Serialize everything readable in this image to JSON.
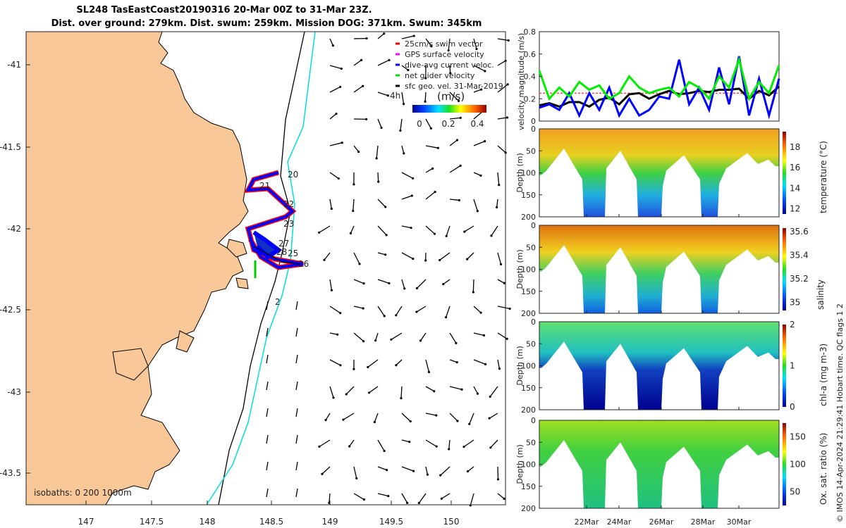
{
  "title": {
    "line1": "SL248 TasEastCoast20190316 20-Mar 00Z to 31-Mar 23Z.",
    "line2": "Dist. over ground: 279km. Dist. swum: 259km. Mission DOG: 371km. Swum: 345km"
  },
  "map": {
    "x_ticks": [
      "147",
      "147.5",
      "148",
      "148.5",
      "149",
      "149.5",
      "150"
    ],
    "y_ticks": [
      "-41",
      "-41.5",
      "-42",
      "-42.5",
      "-43",
      "-43.5"
    ],
    "legend": [
      {
        "label": "25cm/s swim vector",
        "color": "#ff0000"
      },
      {
        "label": "GPS surface velocity",
        "color": "#ff00ff"
      },
      {
        "label": "dive-avg current veloc.",
        "color": "#0000ff"
      },
      {
        "label": "net glider velocity",
        "color": "#00dd00"
      },
      {
        "label": "sfc geo. vel. 31-Mar-2019",
        "color": "#000000"
      }
    ],
    "colorbar_label": "(m/s)",
    "colorbar_ticks": [
      "0",
      "0.2",
      "0.4"
    ],
    "time_label": "4h",
    "isobaths_label": "isobaths: 0  200  1000m",
    "day_labels": [
      "20",
      "21",
      "22",
      "23",
      "27",
      "28",
      "25",
      "26",
      "2"
    ],
    "land_color": "#f8c898",
    "isobath_200_color": "#000000",
    "isobath_1000_color": "#00dddd"
  },
  "chart_data": [
    {
      "type": "line",
      "ylabel": "velocity magnitude (m/s)",
      "ylim": [
        0,
        0.8
      ],
      "y_ticks": [
        "0",
        "0.2",
        "0.4",
        "0.6",
        "0.8"
      ],
      "x_days": [
        20,
        20.5,
        21,
        21.5,
        22,
        22.5,
        23,
        23.5,
        24,
        24.5,
        25,
        25.5,
        26,
        26.5,
        27,
        27.5,
        28,
        28.5,
        29,
        29.5,
        30,
        30.5,
        31,
        31.5,
        32
      ],
      "series": [
        {
          "name": "net glider velocity",
          "color": "#00ee00",
          "values": [
            0.45,
            0.2,
            0.3,
            0.22,
            0.35,
            0.28,
            0.32,
            0.2,
            0.25,
            0.4,
            0.3,
            0.25,
            0.28,
            0.3,
            0.22,
            0.35,
            0.3,
            0.2,
            0.4,
            0.3,
            0.55,
            0.2,
            0.35,
            0.25,
            0.5
          ]
        },
        {
          "name": "dive-avg current veloc.",
          "color": "#0000ff",
          "values": [
            0.12,
            0.15,
            0.1,
            0.25,
            0.05,
            0.25,
            0.1,
            0.3,
            0.05,
            0.2,
            0.05,
            0.1,
            0.22,
            0.2,
            0.55,
            0.15,
            0.3,
            0.1,
            0.48,
            0.15,
            0.58,
            0.05,
            0.38,
            0.05,
            0.38
          ]
        },
        {
          "name": "sfc geo. vel.",
          "color": "#000000",
          "values": [
            0.14,
            0.16,
            0.13,
            0.17,
            0.17,
            0.13,
            0.19,
            0.21,
            0.15,
            0.24,
            0.25,
            0.2,
            0.24,
            0.27,
            0.24,
            0.25,
            0.27,
            0.26,
            0.28,
            0.28,
            0.29,
            0.2,
            0.27,
            0.23,
            0.31
          ]
        },
        {
          "name": "25cm/s swim vector",
          "color": "#ff4444",
          "values": [
            0.25,
            0.25,
            0.25,
            0.25,
            0.25,
            0.25,
            0.25,
            0.25,
            0.25,
            0.25,
            0.25,
            0.25,
            0.25,
            0.25,
            0.25,
            0.25,
            0.25,
            0.25,
            0.25,
            0.25,
            0.25,
            0.25,
            0.25,
            0.25,
            0.25
          ]
        }
      ]
    },
    {
      "type": "heatmap",
      "ylabel": "Depth (m)",
      "clabel": "temperature (°C)",
      "y_ticks": [
        "0",
        "50",
        "100",
        "150",
        "200"
      ],
      "c_ticks": [
        "12",
        "14",
        "16",
        "18"
      ],
      "clim": [
        11.5,
        19.5
      ]
    },
    {
      "type": "heatmap",
      "ylabel": "Depth (m)",
      "clabel": "salinity",
      "y_ticks": [
        "0",
        "50",
        "100",
        "150",
        "200"
      ],
      "c_ticks": [
        "35",
        "35.2",
        "35.4",
        "35.6"
      ],
      "clim": [
        34.93,
        35.63
      ]
    },
    {
      "type": "heatmap",
      "ylabel": "Depth (m)",
      "clabel": "chl-a (mg m-3)",
      "y_ticks": [
        "0",
        "50",
        "100",
        "150",
        "200"
      ],
      "c_ticks": [
        "0",
        "1",
        "2"
      ],
      "clim": [
        0,
        2
      ]
    },
    {
      "type": "heatmap",
      "ylabel": "Depth (m)",
      "clabel": "Ox. sat. ratio (%)",
      "y_ticks": [
        "0",
        "50",
        "100",
        "150",
        "200"
      ],
      "c_ticks": [
        "50",
        "100",
        "150"
      ],
      "clim": [
        25,
        175
      ]
    }
  ],
  "time_axis": {
    "ticks": [
      "22Mar",
      "24Mar",
      "26Mar",
      "28Mar",
      "30Mar"
    ]
  },
  "footer": "© IMOS 14-Apr-2024 21:29:41 Hobart time. QC flags 1  2"
}
